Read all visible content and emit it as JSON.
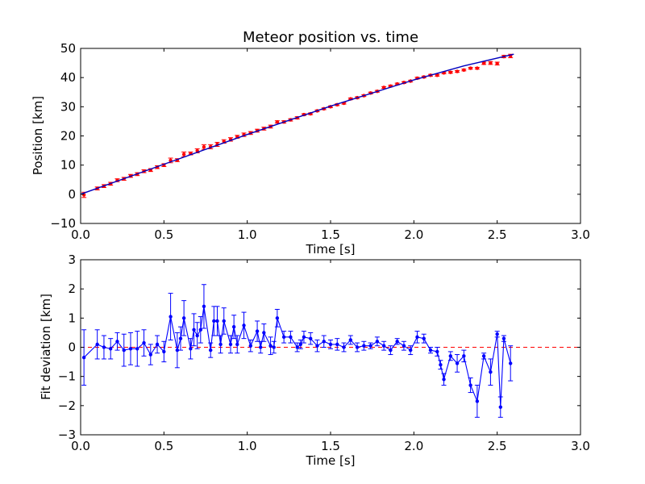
{
  "chart_data": [
    {
      "type": "scatter",
      "title": "Meteor position vs. time",
      "xlabel": "Time [s]",
      "ylabel": "Position [km]",
      "xlim": [
        0.0,
        3.0
      ],
      "ylim": [
        -10,
        50
      ],
      "xticks": [
        "0.0",
        "0.5",
        "1.0",
        "1.5",
        "2.0",
        "2.5",
        "3.0"
      ],
      "yticks": [
        "−10",
        "0",
        "10",
        "20",
        "30",
        "40",
        "50"
      ],
      "grid": false,
      "colors": {
        "data": "#ff0000",
        "fit": "#0000bf"
      },
      "series": [
        {
          "style": "red points with error bars",
          "x": [
            0.02,
            0.1,
            0.14,
            0.18,
            0.22,
            0.26,
            0.3,
            0.34,
            0.38,
            0.42,
            0.46,
            0.5,
            0.54,
            0.58,
            0.62,
            0.66,
            0.7,
            0.74,
            0.78,
            0.82,
            0.86,
            0.9,
            0.94,
            0.98,
            1.02,
            1.06,
            1.1,
            1.14,
            1.18,
            1.22,
            1.26,
            1.3,
            1.34,
            1.38,
            1.42,
            1.46,
            1.5,
            1.54,
            1.58,
            1.62,
            1.66,
            1.7,
            1.74,
            1.78,
            1.82,
            1.86,
            1.9,
            1.94,
            1.98,
            2.02,
            2.06,
            2.1,
            2.14,
            2.18,
            2.22,
            2.26,
            2.3,
            2.34,
            2.38,
            2.42,
            2.46,
            2.5,
            2.54,
            2.58
          ],
          "y": [
            -0.2,
            2.0,
            2.8,
            3.6,
            4.8,
            5.3,
            6.3,
            6.9,
            7.9,
            8.3,
            9.3,
            10.0,
            11.6,
            11.7,
            13.7,
            14.0,
            14.9,
            16.2,
            16.3,
            17.1,
            18.1,
            18.8,
            19.7,
            20.4,
            21.0,
            21.8,
            22.5,
            23.2,
            24.8,
            24.8,
            25.5,
            26.2,
            27.3,
            27.6,
            28.6,
            29.3,
            30.0,
            30.7,
            31.2,
            32.7,
            33.1,
            33.8,
            34.7,
            35.3,
            36.6,
            37.1,
            37.8,
            38.3,
            38.8,
            39.8,
            40.2,
            40.8,
            40.8,
            41.6,
            41.8,
            42.1,
            42.6,
            43.2,
            43.2,
            44.9,
            45.0,
            44.8,
            47.2,
            47.4
          ],
          "yerr": [
            0.9,
            0.5,
            0.5,
            0.5,
            0.5,
            0.5,
            0.5,
            0.5,
            0.5,
            0.5,
            0.5,
            0.5,
            0.8,
            0.5,
            0.8,
            0.5,
            0.7,
            0.8,
            0.7,
            0.7,
            0.6,
            0.6,
            0.5,
            0.6,
            0.5,
            0.5,
            0.5,
            0.5,
            0.4,
            0.4,
            0.4,
            0.4,
            0.3,
            0.3,
            0.3,
            0.3,
            0.3,
            0.3,
            0.3,
            0.3,
            0.3,
            0.3,
            0.3,
            0.3,
            0.3,
            0.3,
            0.3,
            0.3,
            0.3,
            0.3,
            0.3,
            0.3,
            0.3,
            0.3,
            0.3,
            0.3,
            0.3,
            0.3,
            0.3,
            0.4,
            0.5,
            0.5,
            0.4,
            0.6
          ]
        },
        {
          "style": "blue fitted curve",
          "x": [
            0.0,
            0.5,
            1.0,
            1.5,
            2.0,
            2.3,
            2.6
          ],
          "y": [
            0.0,
            10.3,
            20.5,
            30.2,
            39.2,
            44.0,
            48.0
          ]
        }
      ]
    },
    {
      "type": "line",
      "title": "",
      "xlabel": "Time [s]",
      "ylabel": "Fit deviation [km]",
      "xlim": [
        0.0,
        3.0
      ],
      "ylim": [
        -3,
        3
      ],
      "xticks": [
        "0.0",
        "0.5",
        "1.0",
        "1.5",
        "2.0",
        "2.5",
        "3.0"
      ],
      "yticks": [
        "−3",
        "−2",
        "−1",
        "0",
        "1",
        "2",
        "3"
      ],
      "grid": false,
      "colors": {
        "residual": "#0000ff",
        "zero_line": "#ff0000"
      },
      "reference_line": {
        "y": 0,
        "style": "red dashed"
      },
      "series": [
        {
          "style": "blue points with error bars, connected",
          "x": [
            0.02,
            0.1,
            0.14,
            0.18,
            0.22,
            0.26,
            0.3,
            0.34,
            0.38,
            0.42,
            0.46,
            0.5,
            0.54,
            0.58,
            0.6,
            0.62,
            0.66,
            0.68,
            0.7,
            0.72,
            0.74,
            0.78,
            0.8,
            0.82,
            0.84,
            0.86,
            0.9,
            0.92,
            0.94,
            0.98,
            1.02,
            1.06,
            1.08,
            1.1,
            1.14,
            1.16,
            1.18,
            1.22,
            1.26,
            1.3,
            1.32,
            1.34,
            1.38,
            1.42,
            1.46,
            1.5,
            1.54,
            1.58,
            1.62,
            1.66,
            1.7,
            1.74,
            1.78,
            1.82,
            1.86,
            1.9,
            1.94,
            1.98,
            2.02,
            2.06,
            2.1,
            2.14,
            2.16,
            2.18,
            2.22,
            2.26,
            2.3,
            2.34,
            2.38,
            2.42,
            2.46,
            2.5,
            2.52,
            2.54,
            2.58
          ],
          "y": [
            -0.35,
            0.1,
            0.0,
            -0.05,
            0.2,
            -0.1,
            -0.05,
            -0.05,
            0.15,
            -0.25,
            0.1,
            -0.15,
            1.05,
            -0.1,
            0.3,
            1.0,
            -0.05,
            0.6,
            0.4,
            0.6,
            1.4,
            -0.1,
            0.9,
            0.9,
            0.1,
            0.9,
            0.1,
            0.7,
            0.1,
            0.75,
            0.05,
            0.55,
            0.0,
            0.5,
            0.05,
            0.0,
            1.0,
            0.35,
            0.35,
            0.0,
            0.1,
            0.35,
            0.3,
            0.05,
            0.2,
            0.1,
            0.1,
            0.0,
            0.25,
            0.0,
            0.05,
            0.05,
            0.2,
            0.05,
            -0.1,
            0.2,
            0.05,
            -0.1,
            0.35,
            0.3,
            -0.1,
            -0.15,
            -0.6,
            -1.1,
            -0.3,
            -0.55,
            -0.3,
            -1.3,
            -1.85,
            -0.3,
            -0.85,
            0.45,
            -2.05,
            0.3,
            -0.55
          ],
          "yerr": [
            0.95,
            0.5,
            0.4,
            0.35,
            0.3,
            0.55,
            0.55,
            0.6,
            0.45,
            0.35,
            0.3,
            0.35,
            0.8,
            0.6,
            0.4,
            0.6,
            0.35,
            0.55,
            0.45,
            0.45,
            0.75,
            0.25,
            0.5,
            0.5,
            0.3,
            0.45,
            0.3,
            0.4,
            0.3,
            0.45,
            0.2,
            0.35,
            0.2,
            0.3,
            0.3,
            0.2,
            0.3,
            0.2,
            0.2,
            0.15,
            0.15,
            0.2,
            0.2,
            0.2,
            0.2,
            0.15,
            0.2,
            0.15,
            0.15,
            0.15,
            0.15,
            0.1,
            0.15,
            0.15,
            0.15,
            0.1,
            0.15,
            0.15,
            0.2,
            0.15,
            0.1,
            0.15,
            0.15,
            0.2,
            0.15,
            0.3,
            0.2,
            0.25,
            0.55,
            0.1,
            0.45,
            0.1,
            0.35,
            0.1,
            0.6
          ]
        }
      ]
    }
  ]
}
